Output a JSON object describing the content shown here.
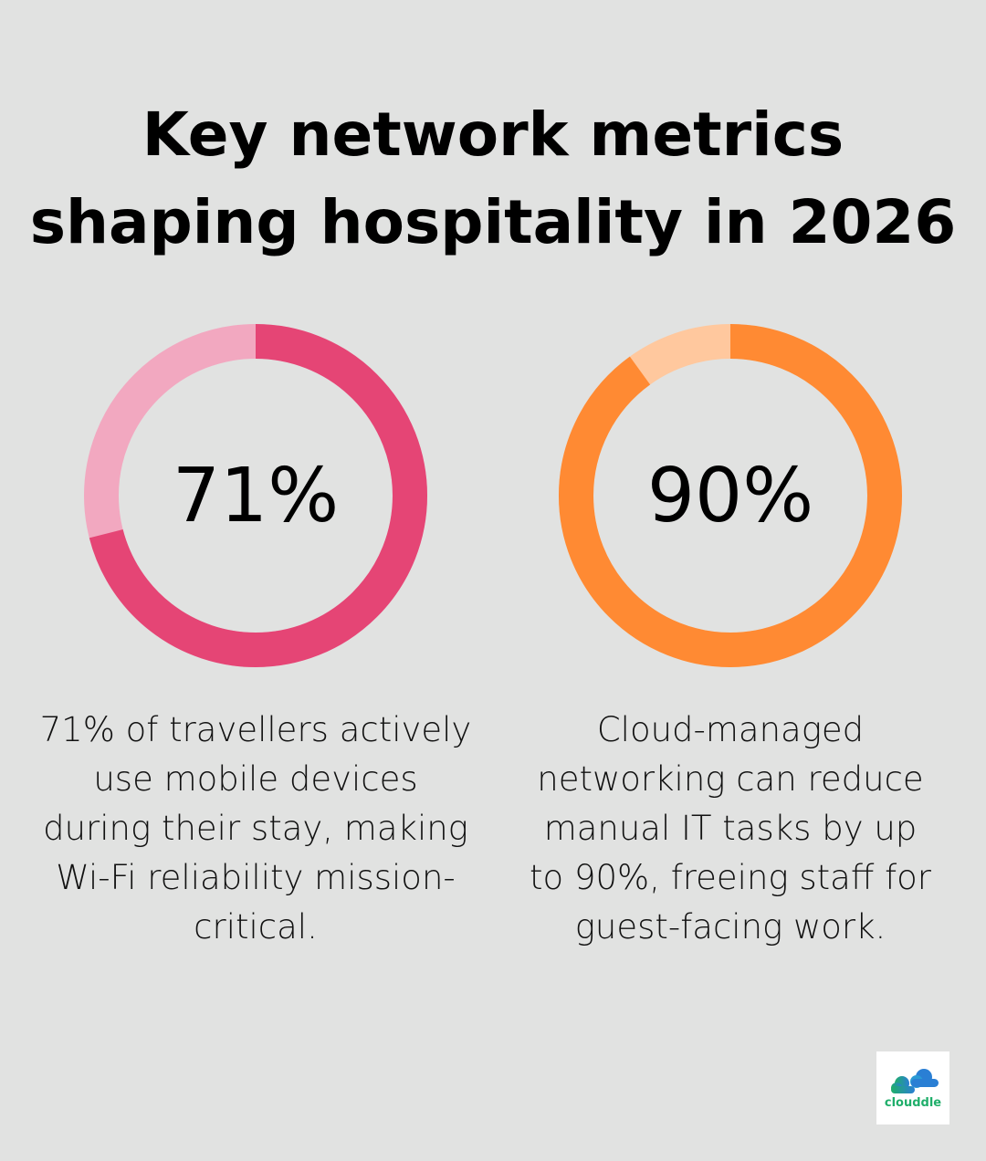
{
  "title_line1": "Key network metrics",
  "title_line2": "shaping hospitality in 2026",
  "chart_data": [
    {
      "type": "pie",
      "donut": true,
      "value": 71,
      "max": 100,
      "label": "71%",
      "colors": {
        "fill": "#e54575",
        "rest": "#f2a8c0"
      },
      "description": "71% of travellers actively use mobile devices during their stay, making Wi-Fi reliability mission-critical."
    },
    {
      "type": "pie",
      "donut": true,
      "value": 90,
      "max": 100,
      "label": "90%",
      "colors": {
        "fill": "#ff8a33",
        "rest": "#ffc89e"
      },
      "description": "Cloud-managed networking can reduce manual IT tasks by up to 90%, freeing staff for guest-facing work."
    }
  ],
  "logo": {
    "text": "clouddle"
  }
}
